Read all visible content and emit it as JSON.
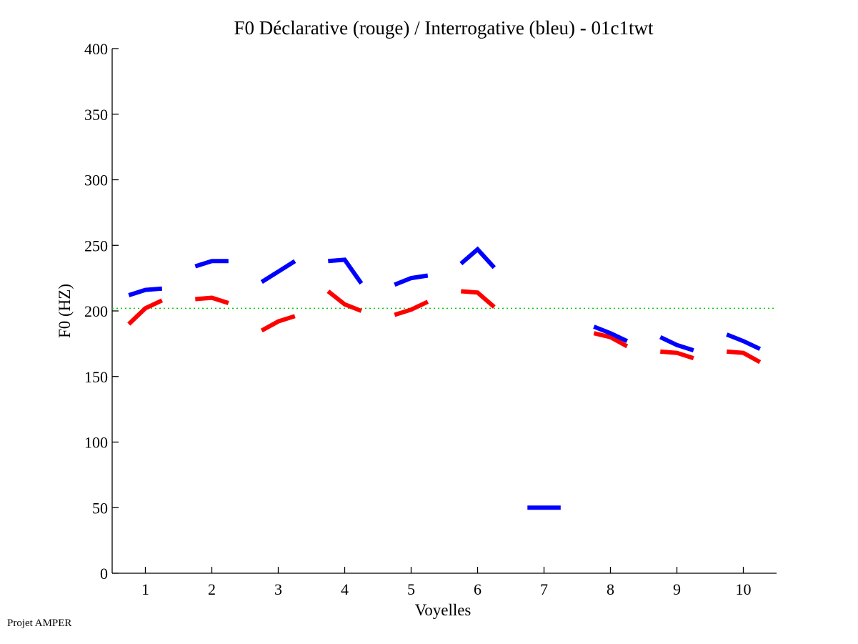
{
  "chart_data": {
    "type": "line",
    "title": "F0 Déclarative (rouge) / Interrogative (bleu) - 01c1twt",
    "xlabel": "Voyelles",
    "ylabel": "F0 (HZ)",
    "xlim": [
      0.5,
      10.5
    ],
    "ylim": [
      0,
      400
    ],
    "xticks": [
      1,
      2,
      3,
      4,
      5,
      6,
      7,
      8,
      9,
      10
    ],
    "xtick_labels": [
      "1",
      "2",
      "3",
      "4",
      "5",
      "6",
      "7",
      "8",
      "9",
      "10"
    ],
    "yticks": [
      0,
      50,
      100,
      150,
      200,
      250,
      300,
      350,
      400
    ],
    "ytick_labels": [
      "0",
      "50",
      "100",
      "150",
      "200",
      "250",
      "300",
      "350",
      "400"
    ],
    "grid": false,
    "reference_line": {
      "y": 202,
      "color": "#00cc00",
      "style": "dotted"
    },
    "series": [
      {
        "name": "Déclarative (rouge)",
        "color": "#ff0000",
        "segments": [
          {
            "vowel": 1,
            "x": [
              0.75,
              1.0,
              1.25
            ],
            "y": [
              190,
              202,
              208
            ]
          },
          {
            "vowel": 2,
            "x": [
              1.75,
              2.0,
              2.25
            ],
            "y": [
              209,
              210,
              206
            ]
          },
          {
            "vowel": 3,
            "x": [
              2.75,
              3.0,
              3.25
            ],
            "y": [
              185,
              192,
              196
            ]
          },
          {
            "vowel": 4,
            "x": [
              3.75,
              4.0,
              4.25
            ],
            "y": [
              215,
              205,
              200
            ]
          },
          {
            "vowel": 5,
            "x": [
              4.75,
              5.0,
              5.25
            ],
            "y": [
              197,
              201,
              207
            ]
          },
          {
            "vowel": 6,
            "x": [
              5.75,
              6.0,
              6.25
            ],
            "y": [
              215,
              214,
              203
            ]
          },
          {
            "vowel": 8,
            "x": [
              7.75,
              8.0,
              8.25
            ],
            "y": [
              183,
              180,
              173
            ]
          },
          {
            "vowel": 9,
            "x": [
              8.75,
              9.0,
              9.25
            ],
            "y": [
              169,
              168,
              164
            ]
          },
          {
            "vowel": 10,
            "x": [
              9.75,
              10.0,
              10.25
            ],
            "y": [
              169,
              168,
              161
            ]
          }
        ]
      },
      {
        "name": "Interrogative (bleu)",
        "color": "#0000ff",
        "segments": [
          {
            "vowel": 1,
            "x": [
              0.75,
              1.0,
              1.25
            ],
            "y": [
              212,
              216,
              217
            ]
          },
          {
            "vowel": 2,
            "x": [
              1.75,
              2.0,
              2.25
            ],
            "y": [
              234,
              238,
              238
            ]
          },
          {
            "vowel": 3,
            "x": [
              2.75,
              3.0,
              3.25
            ],
            "y": [
              222,
              230,
              238
            ]
          },
          {
            "vowel": 4,
            "x": [
              3.75,
              4.0,
              4.25
            ],
            "y": [
              238,
              239,
              221
            ]
          },
          {
            "vowel": 5,
            "x": [
              4.75,
              5.0,
              5.25
            ],
            "y": [
              220,
              225,
              227
            ]
          },
          {
            "vowel": 6,
            "x": [
              5.75,
              6.0,
              6.25
            ],
            "y": [
              236,
              247,
              233
            ]
          },
          {
            "vowel": 7,
            "x": [
              6.75,
              7.0,
              7.25
            ],
            "y": [
              50,
              50,
              50
            ]
          },
          {
            "vowel": 8,
            "x": [
              7.75,
              8.0,
              8.25
            ],
            "y": [
              188,
              183,
              177
            ]
          },
          {
            "vowel": 9,
            "x": [
              8.75,
              9.0,
              9.25
            ],
            "y": [
              180,
              174,
              170
            ]
          },
          {
            "vowel": 10,
            "x": [
              9.75,
              10.0,
              10.25
            ],
            "y": [
              182,
              177,
              171
            ]
          }
        ]
      }
    ]
  },
  "footer": {
    "credit": "Projet AMPER"
  }
}
